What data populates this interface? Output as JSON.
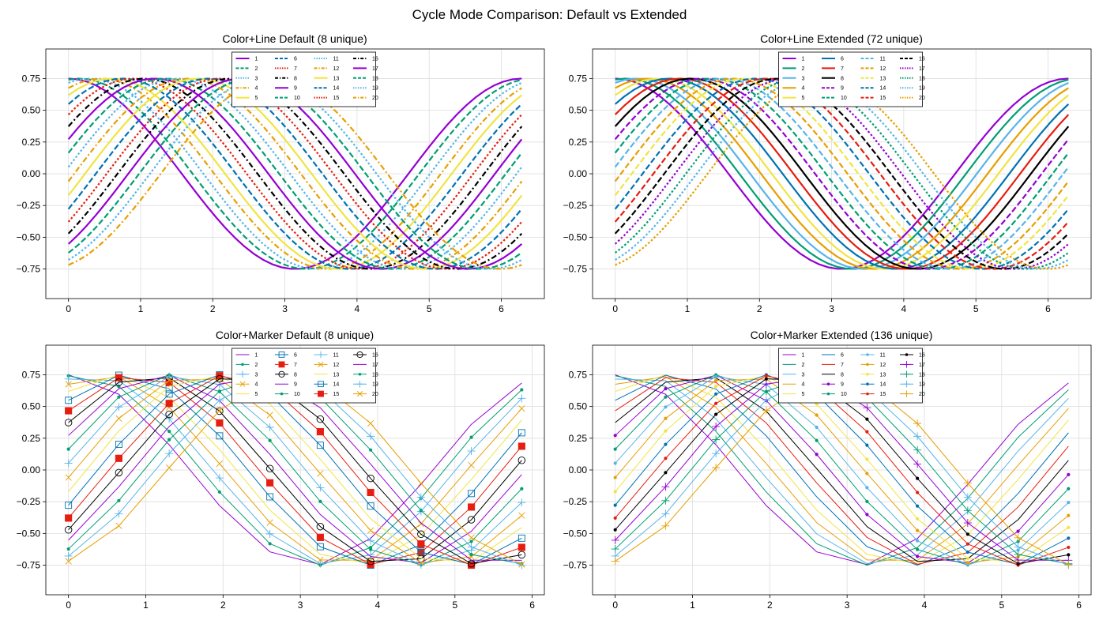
{
  "figure": {
    "title": "Cycle Mode Comparison: Default vs Extended"
  },
  "palette": {
    "colors": [
      "#9400d3",
      "#009e73",
      "#56b4e9",
      "#e69f00",
      "#f0e442",
      "#0072b2",
      "#e51e10",
      "#000000"
    ],
    "grid": "#dddddd",
    "axis": "#000000"
  },
  "series_labels": [
    "1",
    "2",
    "3",
    "4",
    "5",
    "6",
    "7",
    "8",
    "9",
    "10",
    "11",
    "12",
    "13",
    "14",
    "15",
    "16",
    "17",
    "18",
    "19",
    "20"
  ],
  "chart_data": [
    {
      "type": "line",
      "title": "Color+Line Default (8 unique)",
      "style": "line",
      "mode": "default",
      "unique_styles": 8,
      "x_range": [
        0,
        6.283
      ],
      "points_per_series": 50,
      "function": "y = 0.75*cos(x - 0.15*k), k = 0..19",
      "xlim": [
        -0.314,
        6.597
      ],
      "ylim": [
        -0.983,
        0.983
      ],
      "xticks": [
        0,
        1,
        2,
        3,
        4,
        5,
        6
      ],
      "yticks": [
        -0.75,
        -0.5,
        -0.25,
        0.0,
        0.25,
        0.5,
        0.75
      ],
      "ytick_labels": [
        "−0.75",
        "−0.50",
        "−0.25",
        "0.00",
        "0.25",
        "0.50",
        "0.75"
      ],
      "legend_position": "upper center",
      "legend_columns": 4,
      "grid": true,
      "linestyles": [
        "solid",
        "dashed",
        "dotted",
        "dashdot"
      ],
      "series_count": 20
    },
    {
      "type": "line",
      "title": "Color+Line Extended (72 unique)",
      "style": "line",
      "mode": "extended",
      "unique_styles": 72,
      "x_range": [
        0,
        6.283
      ],
      "points_per_series": 50,
      "function": "y = 0.75*cos(x - 0.15*k), k = 0..19",
      "xlim": [
        -0.314,
        6.597
      ],
      "ylim": [
        -0.983,
        0.983
      ],
      "xticks": [
        0,
        1,
        2,
        3,
        4,
        5,
        6
      ],
      "yticks": [
        -0.75,
        -0.5,
        -0.25,
        0.0,
        0.25,
        0.5,
        0.75
      ],
      "ytick_labels": [
        "−0.75",
        "−0.50",
        "−0.25",
        "0.00",
        "0.25",
        "0.50",
        "0.75"
      ],
      "legend_position": "upper center",
      "legend_columns": 4,
      "grid": true,
      "linestyles": [
        "solid",
        "dashed",
        "dotted",
        "dashdot"
      ],
      "series_count": 20
    },
    {
      "type": "line",
      "title": "Color+Marker Default (8 unique)",
      "style": "marker",
      "mode": "default",
      "unique_styles": 8,
      "x_range": [
        0,
        5.864
      ],
      "points_per_series": 10,
      "function": "y = 0.75*cos(x - 0.15*k), k = 0..19",
      "xlim": [
        -0.293,
        6.157
      ],
      "ylim": [
        -0.983,
        0.983
      ],
      "xticks": [
        0,
        1,
        2,
        3,
        4,
        5,
        6
      ],
      "yticks": [
        -0.75,
        -0.5,
        -0.25,
        0.0,
        0.25,
        0.5,
        0.75
      ],
      "ytick_labels": [
        "−0.75",
        "−0.50",
        "−0.25",
        "0.00",
        "0.25",
        "0.50",
        "0.75"
      ],
      "legend_position": "upper center",
      "legend_columns": 4,
      "grid": true,
      "markers": [
        "none",
        "dot",
        "plus",
        "x",
        "none",
        "open-square",
        "filled-square",
        "open-circle"
      ],
      "series_count": 20
    },
    {
      "type": "line",
      "title": "Color+Marker Extended (136 unique)",
      "style": "marker",
      "mode": "extended",
      "unique_styles": 136,
      "x_range": [
        0,
        5.864
      ],
      "points_per_series": 10,
      "function": "y = 0.75*cos(x - 0.15*k), k = 0..19",
      "xlim": [
        -0.293,
        6.157
      ],
      "ylim": [
        -0.983,
        0.983
      ],
      "xticks": [
        0,
        1,
        2,
        3,
        4,
        5,
        6
      ],
      "yticks": [
        -0.75,
        -0.5,
        -0.25,
        0.0,
        0.25,
        0.5,
        0.75
      ],
      "ytick_labels": [
        "−0.75",
        "−0.50",
        "−0.25",
        "0.00",
        "0.25",
        "0.50",
        "0.75"
      ],
      "legend_position": "upper center",
      "legend_columns": 4,
      "grid": true,
      "markers": [
        "none",
        "dot",
        "plus",
        "x"
      ],
      "series_count": 20
    }
  ]
}
